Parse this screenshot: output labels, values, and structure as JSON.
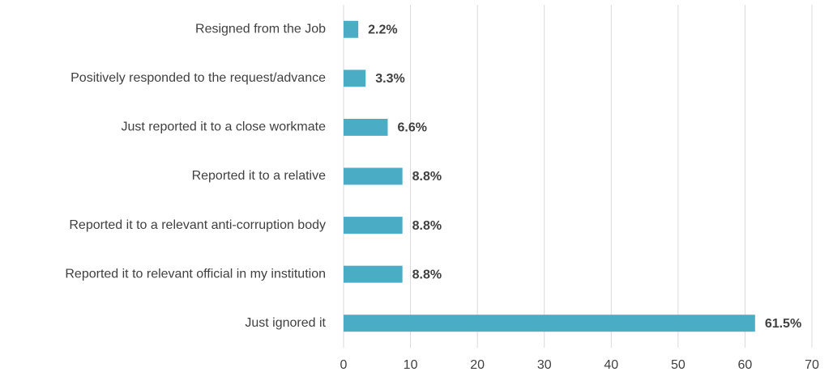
{
  "chart_data": {
    "type": "bar",
    "orientation": "horizontal",
    "categories": [
      "Resigned from the Job",
      "Positively responded to the request/advance",
      "Just reported it to a close workmate",
      "Reported it to a relative",
      "Reported it to a relevant anti-corruption body",
      "Reported it to relevant official in my institution",
      "Just ignored it"
    ],
    "values": [
      2.2,
      3.3,
      6.6,
      8.8,
      8.8,
      8.8,
      61.5
    ],
    "value_labels": [
      "2.2%",
      "3.3%",
      "6.6%",
      "8.8%",
      "8.8%",
      "8.8%",
      "61.5%"
    ],
    "color": "#4bacc6",
    "xlim": [
      0,
      70
    ],
    "xticks": [
      0,
      10,
      20,
      30,
      40,
      50,
      60,
      70
    ],
    "grid": true
  }
}
